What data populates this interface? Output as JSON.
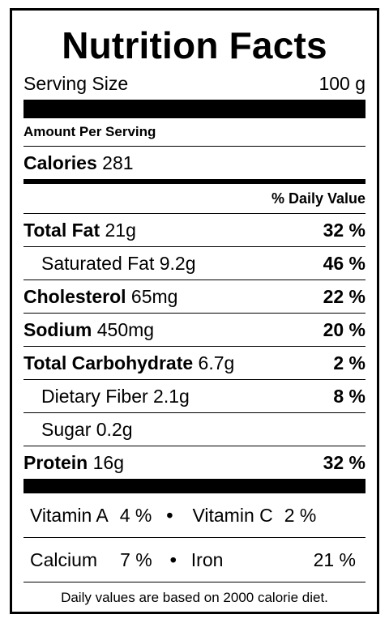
{
  "title": "Nutrition Facts",
  "serving": {
    "label": "Serving Size",
    "value": "100 g"
  },
  "amount_per_serving": "Amount Per Serving",
  "calories": {
    "label": "Calories",
    "value": "281"
  },
  "daily_value_header": "% Daily Value",
  "nutrients": [
    {
      "name": "Total Fat",
      "amount": "21g",
      "dv": "32 %"
    },
    {
      "name": "Saturated Fat",
      "amount": "9.2g",
      "dv": "46 %"
    },
    {
      "name": "Cholesterol",
      "amount": "65mg",
      "dv": "22 %"
    },
    {
      "name": "Sodium",
      "amount": "450mg",
      "dv": "20 %"
    },
    {
      "name": "Total Carbohydrate",
      "amount": "6.7g",
      "dv": "2 %"
    },
    {
      "name": "Dietary Fiber",
      "amount": "2.1g",
      "dv": "8 %"
    },
    {
      "name": "Sugar",
      "amount": "0.2g",
      "dv": ""
    },
    {
      "name": "Protein",
      "amount": "16g",
      "dv": "32 %"
    }
  ],
  "vitamins": [
    {
      "name": "Vitamin A",
      "dv": "4 %"
    },
    {
      "name": "Vitamin C",
      "dv": "2 %"
    },
    {
      "name": "Calcium",
      "dv": "7 %"
    },
    {
      "name": "Iron",
      "dv": "21 %"
    }
  ],
  "separator": "•",
  "footnote": "Daily values are based on 2000 calorie diet."
}
